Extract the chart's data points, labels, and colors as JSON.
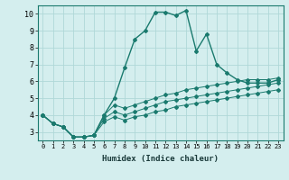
{
  "xlabel": "Humidex (Indice chaleur)",
  "bg_color": "#d4eeee",
  "line_color": "#1a7a6e",
  "grid_color": "#b0d8d8",
  "xlim": [
    -0.5,
    23.5
  ],
  "ylim": [
    2.5,
    10.5
  ],
  "yticks": [
    3,
    4,
    5,
    6,
    7,
    8,
    9,
    10
  ],
  "xticks": [
    0,
    1,
    2,
    3,
    4,
    5,
    6,
    7,
    8,
    9,
    10,
    11,
    12,
    13,
    14,
    15,
    16,
    17,
    18,
    19,
    20,
    21,
    22,
    23
  ],
  "series": [
    [
      4.0,
      3.5,
      3.3,
      2.7,
      2.7,
      2.8,
      4.0,
      5.0,
      6.8,
      8.5,
      9.0,
      10.1,
      10.1,
      9.9,
      10.2,
      7.8,
      8.8,
      7.0,
      6.5,
      6.1,
      5.9,
      5.9,
      5.9,
      6.1
    ],
    [
      4.0,
      3.5,
      3.3,
      2.7,
      2.7,
      2.8,
      4.0,
      4.6,
      4.4,
      4.6,
      4.8,
      5.0,
      5.2,
      5.3,
      5.5,
      5.6,
      5.7,
      5.8,
      5.9,
      6.0,
      6.1,
      6.1,
      6.1,
      6.2
    ],
    [
      4.0,
      3.5,
      3.3,
      2.7,
      2.7,
      2.8,
      3.8,
      4.2,
      4.0,
      4.2,
      4.4,
      4.6,
      4.8,
      4.9,
      5.0,
      5.1,
      5.2,
      5.3,
      5.4,
      5.5,
      5.6,
      5.7,
      5.8,
      5.9
    ],
    [
      4.0,
      3.5,
      3.3,
      2.7,
      2.7,
      2.8,
      3.6,
      3.9,
      3.7,
      3.9,
      4.0,
      4.2,
      4.3,
      4.5,
      4.6,
      4.7,
      4.8,
      4.9,
      5.0,
      5.1,
      5.2,
      5.3,
      5.4,
      5.5
    ]
  ]
}
